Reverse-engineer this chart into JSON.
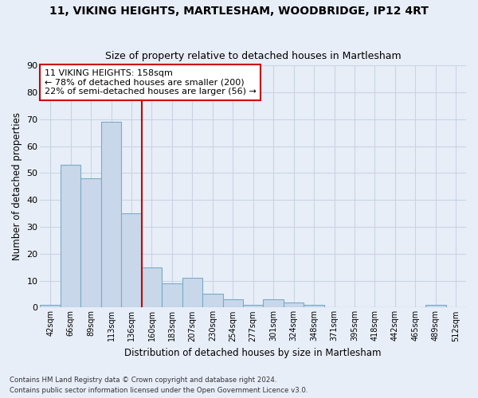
{
  "title": "11, VIKING HEIGHTS, MARTLESHAM, WOODBRIDGE, IP12 4RT",
  "subtitle": "Size of property relative to detached houses in Martlesham",
  "xlabel": "Distribution of detached houses by size in Martlesham",
  "ylabel": "Number of detached properties",
  "categories": [
    "42sqm",
    "66sqm",
    "89sqm",
    "113sqm",
    "136sqm",
    "160sqm",
    "183sqm",
    "207sqm",
    "230sqm",
    "254sqm",
    "277sqm",
    "301sqm",
    "324sqm",
    "348sqm",
    "371sqm",
    "395sqm",
    "418sqm",
    "442sqm",
    "465sqm",
    "489sqm",
    "512sqm"
  ],
  "values": [
    1,
    53,
    48,
    69,
    35,
    15,
    9,
    11,
    5,
    3,
    1,
    3,
    2,
    1,
    0,
    0,
    0,
    0,
    0,
    1,
    0
  ],
  "bar_color": "#c8d8ea",
  "bar_edge_color": "#7aaac8",
  "vline_color": "#cc0000",
  "vline_index": 5,
  "ylim": [
    0,
    90
  ],
  "yticks": [
    0,
    10,
    20,
    30,
    40,
    50,
    60,
    70,
    80,
    90
  ],
  "annotation_text": "11 VIKING HEIGHTS: 158sqm\n← 78% of detached houses are smaller (200)\n22% of semi-detached houses are larger (56) →",
  "annotation_box_color": "#ffffff",
  "annotation_box_edgecolor": "#cc0000",
  "grid_color": "#c8d4e4",
  "background_color": "#e8eef8",
  "title_fontsize": 10,
  "subtitle_fontsize": 9,
  "footnote1": "Contains HM Land Registry data © Crown copyright and database right 2024.",
  "footnote2": "Contains public sector information licensed under the Open Government Licence v3.0."
}
